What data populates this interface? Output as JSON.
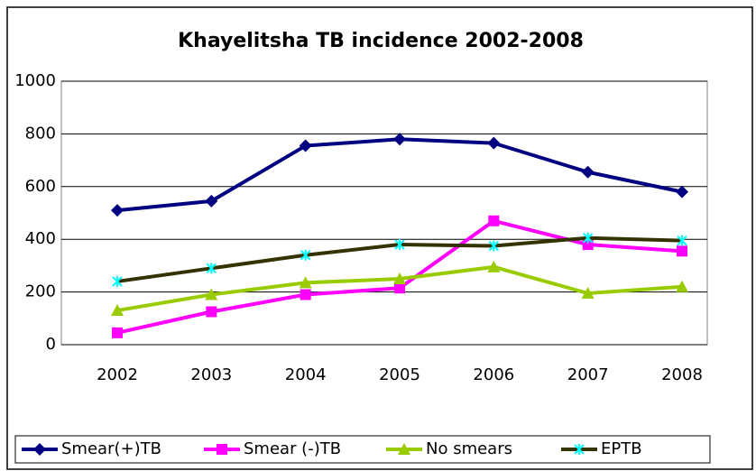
{
  "chart_data": {
    "type": "line",
    "title": "Khayelitsha TB incidence 2002-2008",
    "categories": [
      "2002",
      "2003",
      "2004",
      "2005",
      "2006",
      "2007",
      "2008"
    ],
    "series": [
      {
        "name": "Smear(+)TB",
        "color": "#000080",
        "marker": "diamond",
        "values": [
          510,
          545,
          755,
          780,
          765,
          655,
          580
        ]
      },
      {
        "name": "Smear (-)TB",
        "color": "#ff00ff",
        "marker": "square",
        "values": [
          45,
          125,
          190,
          215,
          470,
          380,
          355
        ]
      },
      {
        "name": "No smears",
        "color": "#99cc00",
        "marker": "triangle",
        "values": [
          130,
          190,
          235,
          250,
          295,
          195,
          220
        ]
      },
      {
        "name": "EPTB",
        "color": "#333300",
        "marker": "star",
        "marker_color": "#00ffff",
        "values": [
          240,
          290,
          340,
          380,
          375,
          405,
          395
        ]
      }
    ],
    "ylim": [
      0,
      1000
    ],
    "yticks": [
      0,
      200,
      400,
      600,
      800,
      1000
    ],
    "grid": true,
    "legend": "bottom"
  }
}
